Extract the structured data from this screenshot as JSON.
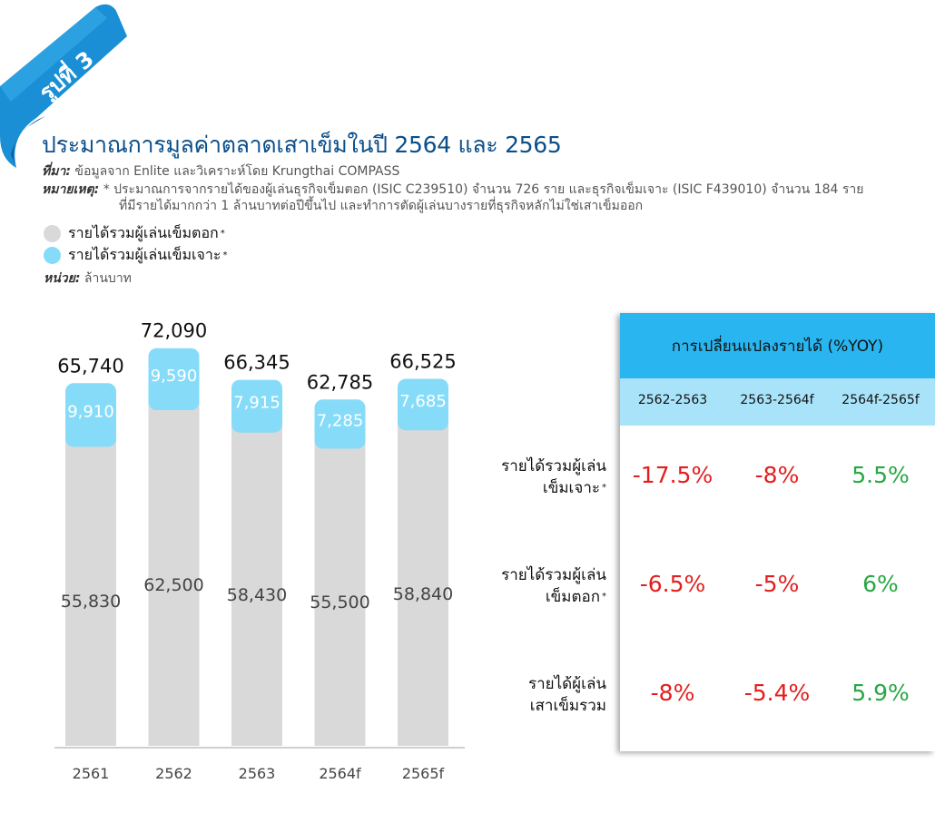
{
  "figure_label": "รูปที่ 3",
  "title": "ประมาณการมูลค่าตลาดเสาเข็มในปี 2564 และ 2565",
  "source_label": "ที่มา:",
  "source_text": "ข้อมูลจาก Enlite และวิเคราะห์โดย Krungthai COMPASS",
  "note_label": "หมายเหตุ:",
  "note_star": "*",
  "note_line1": "ประมาณการจากรายได้ของผู้เล่นธุรกิจเข็มตอก (ISIC C239510) จำนวน 726 ราย และธุรกิจเข็มเจาะ (ISIC F439010) จำนวน 184 ราย",
  "note_line2": "ที่มีรายได้มากกว่า 1 ล้านบาทต่อปีขึ้นไป และทำการตัดผู้เล่นบางรายที่ธุรกิจหลักไม่ใช่เสาเข็มออก",
  "unit_label": "หน่วย:",
  "unit_text": "ล้านบาท",
  "colors": {
    "driven": "#d9d9d9",
    "bored": "#86dcf8",
    "negative": "#e41e1e",
    "positive": "#27a844",
    "header": "#29b6f0",
    "subheader": "#a8e3f9",
    "title": "#0b4f8a"
  },
  "chart_data": {
    "type": "bar",
    "stacked": true,
    "categories": [
      "2561",
      "2562",
      "2563",
      "2564f",
      "2565f"
    ],
    "series": [
      {
        "name": "รายได้รวมผู้เล่นเข็มตอก",
        "values": [
          55830,
          62500,
          58430,
          55500,
          58840
        ]
      },
      {
        "name": "รายได้รวมผู้เล่นเข็มเจาะ",
        "values": [
          9910,
          9590,
          7915,
          7285,
          7685
        ]
      }
    ],
    "value_labels_bottom": [
      "55,830",
      "62,500",
      "58,430",
      "55,500",
      "58,840"
    ],
    "value_labels_top": [
      "9,910",
      "9,590",
      "7,915",
      "7,285",
      "7,685"
    ],
    "totals": [
      "65,740",
      "72,090",
      "66,345",
      "62,785",
      "66,525"
    ],
    "legend": [
      "รายได้รวมผู้เล่นเข็มตอก",
      "รายได้รวมผู้เล่นเข็มเจาะ"
    ],
    "legend_star": "*",
    "grid": false
  },
  "table": {
    "title": "การเปลี่ยนแปลงรายได้ (%YOY)",
    "columns": [
      "2562-2563",
      "2563-2564f",
      "2564f-2565f"
    ],
    "rows": [
      {
        "label_line1": "รายได้รวมผู้เล่น",
        "label_line2": "เข็มเจาะ",
        "star": "*",
        "values": [
          "-17.5%",
          "-8%",
          "5.5%"
        ],
        "signs": [
          "neg",
          "neg",
          "pos"
        ]
      },
      {
        "label_line1": "รายได้รวมผู้เล่น",
        "label_line2": "เข็มตอก",
        "star": "*",
        "values": [
          "-6.5%",
          "-5%",
          "6%"
        ],
        "signs": [
          "neg",
          "neg",
          "pos"
        ]
      },
      {
        "label_line1": "รายได้ผู้เล่น",
        "label_line2": "เสาเข็มรวม",
        "star": "",
        "values": [
          "-8%",
          "-5.4%",
          "5.9%"
        ],
        "signs": [
          "neg",
          "neg",
          "pos"
        ]
      }
    ]
  }
}
